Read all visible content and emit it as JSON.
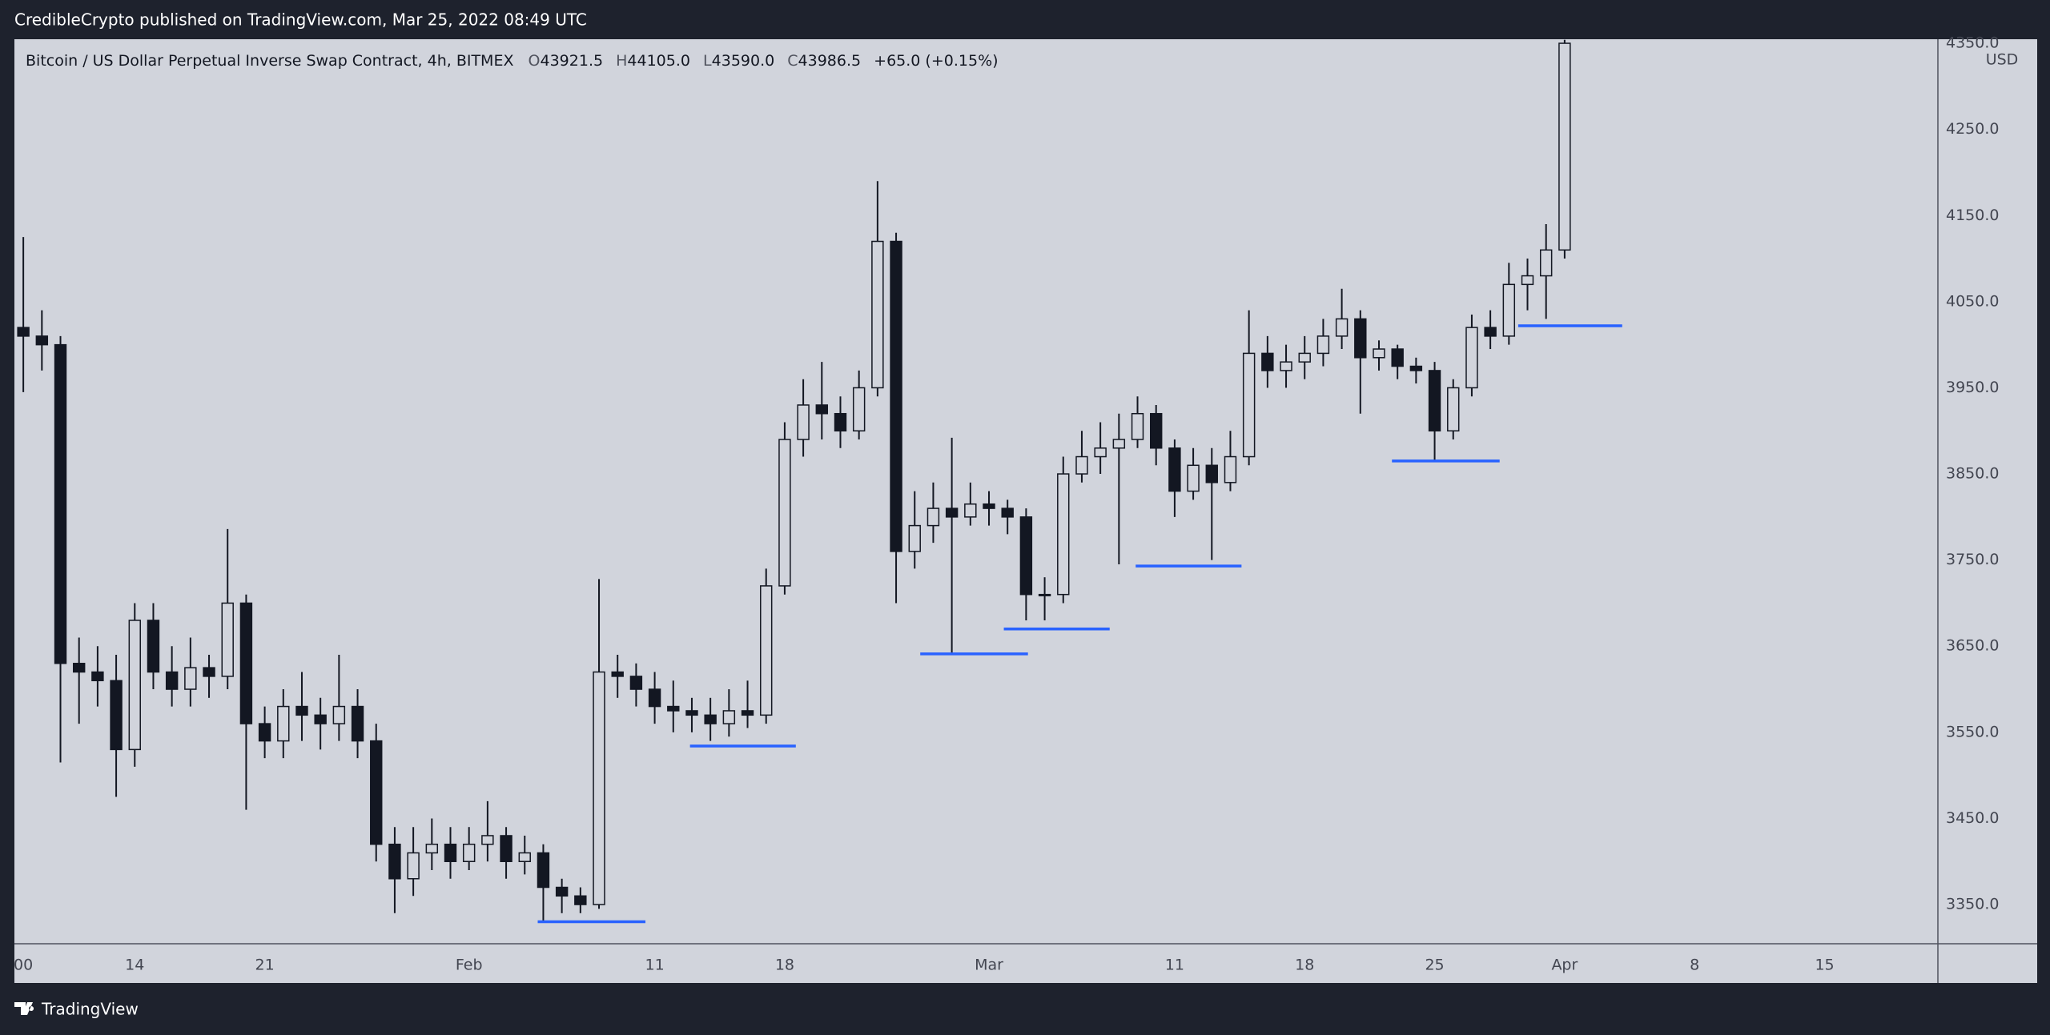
{
  "header": {
    "published": "CredibleCrypto published on TradingView.com, Mar 25, 2022 08:49 UTC"
  },
  "footer": {
    "brand": "TradingView"
  },
  "chart_data": {
    "type": "candlestick",
    "title": "Bitcoin / US Dollar Perpetual Inverse Swap Contract, 4h, BITMEX",
    "ohlc_legend": [
      {
        "label": "O",
        "value": "43921.5"
      },
      {
        "label": "H",
        "value": "44105.0"
      },
      {
        "label": "L",
        "value": "43590.0"
      },
      {
        "label": "C",
        "value": "43986.5"
      }
    ],
    "change": "+65.0 (+0.15%)",
    "y_axis_unit": "USD",
    "color": "#131722",
    "x": [
      8,
      9,
      10,
      11,
      12,
      13,
      14,
      15,
      16,
      17,
      18,
      19,
      20,
      21,
      22,
      23,
      24,
      25,
      26,
      27,
      28,
      29,
      30,
      31,
      32,
      33,
      34,
      35,
      36,
      37,
      38,
      39,
      40,
      41,
      42,
      43,
      44,
      45,
      46,
      47,
      48,
      49,
      50,
      51,
      52,
      53,
      54,
      55,
      56,
      57,
      58,
      59,
      60,
      61,
      62,
      63,
      64,
      65,
      66,
      67,
      68,
      69,
      70,
      71,
      72,
      73,
      74,
      75,
      76,
      77,
      78,
      79,
      80,
      81,
      82,
      83,
      84,
      85,
      86,
      87,
      88,
      89,
      90,
      91
    ],
    "open": [
      4020,
      4010,
      4000,
      3630,
      3620,
      3610,
      3530,
      3680,
      3620,
      3600,
      3625,
      3615,
      3700,
      3560,
      3540,
      3580,
      3570,
      3560,
      3580,
      3540,
      3420,
      3380,
      3410,
      3420,
      3400,
      3420,
      3430,
      3400,
      3410,
      3370,
      3360,
      3350,
      3620,
      3615,
      3600,
      3580,
      3575,
      3570,
      3560,
      3575,
      3570,
      3720,
      3890,
      3930,
      3920,
      3900,
      3950,
      4120,
      3760,
      3790,
      3810,
      3800,
      3815,
      3810,
      3800,
      3710,
      3710,
      3850,
      3870,
      3880,
      3890,
      3920,
      3880,
      3830,
      3860,
      3840,
      3870,
      3990,
      3970,
      3980,
      3990,
      4010,
      4030,
      3985,
      3995,
      3975,
      3970,
      3900,
      3950,
      4020,
      4010,
      4070,
      4080,
      4110
    ],
    "high": [
      4125,
      4040,
      4010,
      3660,
      3650,
      3640,
      3700,
      3700,
      3650,
      3660,
      3640,
      3786,
      3710,
      3580,
      3600,
      3620,
      3590,
      3640,
      3600,
      3560,
      3440,
      3440,
      3450,
      3440,
      3440,
      3470,
      3440,
      3430,
      3420,
      3380,
      3370,
      3728,
      3640,
      3630,
      3620,
      3610,
      3590,
      3590,
      3600,
      3610,
      3740,
      3910,
      3960,
      3980,
      3940,
      3970,
      4190,
      4130,
      3830,
      3840,
      3892,
      3840,
      3830,
      3820,
      3810,
      3730,
      3870,
      3900,
      3910,
      3920,
      3940,
      3930,
      3890,
      3880,
      3880,
      3900,
      4040,
      4010,
      4000,
      4010,
      4030,
      4065,
      4040,
      4005,
      4000,
      3985,
      3980,
      3960,
      4035,
      4040,
      4095,
      4100,
      4140,
      4354
    ],
    "low": [
      3945,
      3970,
      3515,
      3560,
      3580,
      3475,
      3510,
      3600,
      3580,
      3580,
      3590,
      3600,
      3460,
      3520,
      3520,
      3540,
      3530,
      3540,
      3520,
      3400,
      3340,
      3360,
      3390,
      3380,
      3390,
      3400,
      3380,
      3385,
      3330,
      3340,
      3340,
      3345,
      3590,
      3580,
      3560,
      3550,
      3550,
      3540,
      3545,
      3555,
      3560,
      3710,
      3870,
      3890,
      3880,
      3890,
      3940,
      3700,
      3740,
      3770,
      3640,
      3790,
      3790,
      3780,
      3680,
      3680,
      3700,
      3840,
      3850,
      3745,
      3880,
      3860,
      3800,
      3820,
      3750,
      3830,
      3860,
      3950,
      3950,
      3960,
      3975,
      3995,
      3920,
      3970,
      3960,
      3955,
      3865,
      3890,
      3940,
      3995,
      4000,
      4040,
      4030,
      4100
    ],
    "close": [
      4010,
      4000,
      3630,
      3620,
      3610,
      3530,
      3680,
      3620,
      3600,
      3625,
      3615,
      3700,
      3560,
      3540,
      3580,
      3570,
      3560,
      3580,
      3540,
      3420,
      3380,
      3410,
      3420,
      3400,
      3420,
      3430,
      3400,
      3410,
      3370,
      3360,
      3350,
      3620,
      3615,
      3600,
      3580,
      3575,
      3570,
      3560,
      3575,
      3570,
      3720,
      3890,
      3930,
      3920,
      3900,
      3950,
      4120,
      3760,
      3790,
      3810,
      3800,
      3815,
      3810,
      3800,
      3710,
      3710,
      3850,
      3870,
      3880,
      3890,
      3920,
      3880,
      3830,
      3860,
      3840,
      3870,
      3990,
      3970,
      3980,
      3990,
      4010,
      4030,
      3985,
      3995,
      3975,
      3970,
      3900,
      3950,
      4020,
      4010,
      4070,
      4080,
      4110,
      4350
    ],
    "xlim": [
      7.52,
      111.1
    ],
    "xticks": [
      {
        "value": 8,
        "label": "00"
      },
      {
        "value": 14,
        "label": "14"
      },
      {
        "value": 21,
        "label": "21"
      },
      {
        "value": 32,
        "label": "Feb"
      },
      {
        "value": 42,
        "label": "11"
      },
      {
        "value": 49,
        "label": "18"
      },
      {
        "value": 60,
        "label": "Mar"
      },
      {
        "value": 70,
        "label": "11"
      },
      {
        "value": 77,
        "label": "18"
      },
      {
        "value": 84,
        "label": "25"
      },
      {
        "value": 91,
        "label": "Apr"
      },
      {
        "value": 98,
        "label": "8"
      },
      {
        "value": 105,
        "label": "15"
      }
    ],
    "ylim": [
      3304.5,
      4354.7
    ],
    "yticks": [
      {
        "value": 3350,
        "label": "3350.0"
      },
      {
        "value": 3450,
        "label": "3450.0"
      },
      {
        "value": 3550,
        "label": "3550.0"
      },
      {
        "value": 3650,
        "label": "3650.0"
      },
      {
        "value": 3750,
        "label": "3750.0"
      },
      {
        "value": 3850,
        "label": "3850.0"
      },
      {
        "value": 3950,
        "label": "3950.0"
      },
      {
        "value": 4050,
        "label": "4050.0"
      },
      {
        "value": 4150,
        "label": "4150.0"
      },
      {
        "value": 4250,
        "label": "4250.0"
      },
      {
        "value": 4350,
        "label": "4350.0"
      }
    ],
    "grid": false,
    "support_lines": {
      "color": "#2962ff",
      "y": [
        3330,
        3534,
        3641,
        3670,
        3743,
        3865,
        4022
      ],
      "x_start": [
        35.7,
        43.9,
        56.3,
        60.8,
        67.9,
        81.7,
        88.5
      ],
      "x_end": [
        41.5,
        49.6,
        62.1,
        66.5,
        73.6,
        87.5,
        94.1
      ]
    }
  }
}
